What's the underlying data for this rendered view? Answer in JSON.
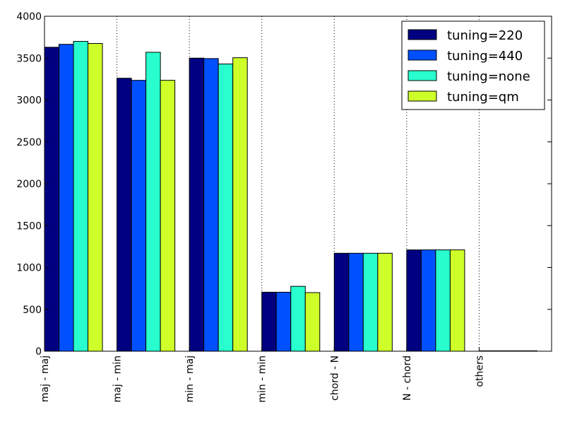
{
  "chart_data": {
    "type": "bar",
    "categories": [
      "maj - maj",
      "maj - min",
      "min - maj",
      "min - min",
      "chord - N",
      "N - chord",
      "others"
    ],
    "series": [
      {
        "name": "tuning=220",
        "color": "#000080",
        "values": [
          3630,
          3260,
          3500,
          705,
          1170,
          1210,
          5
        ]
      },
      {
        "name": "tuning=440",
        "color": "#0050ff",
        "values": [
          3665,
          3235,
          3495,
          705,
          1170,
          1210,
          5
        ]
      },
      {
        "name": "tuning=none",
        "color": "#29ffce",
        "values": [
          3700,
          3570,
          3430,
          775,
          1170,
          1210,
          5
        ]
      },
      {
        "name": "tuning=qm",
        "color": "#ceff29",
        "values": [
          3675,
          3235,
          3505,
          700,
          1170,
          1210,
          5
        ]
      }
    ],
    "title": "",
    "xlabel": "",
    "ylabel": "",
    "ylim": [
      0,
      4000
    ],
    "yticks": [
      0,
      500,
      1000,
      1500,
      2000,
      2500,
      3000,
      3500,
      4000
    ],
    "grid": "vertical dotted at category boundaries",
    "legend": "top-right"
  }
}
